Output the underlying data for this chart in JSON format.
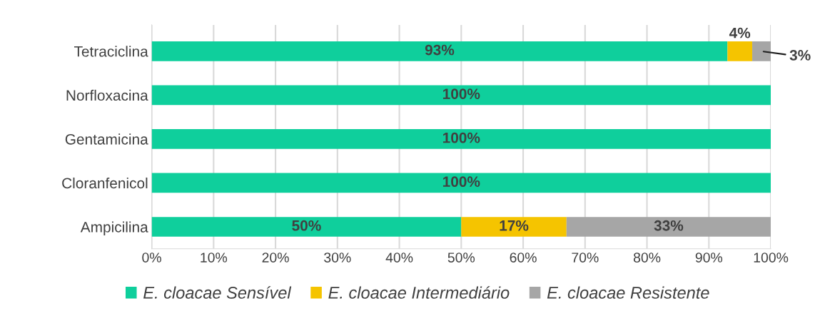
{
  "chart_data": {
    "type": "bar",
    "orientation": "horizontal",
    "stacked": true,
    "categories": [
      "Tetraciclina",
      "Norfloxacina",
      "Gentamicina",
      "Cloranfenicol",
      "Ampicilina"
    ],
    "series": [
      {
        "name": "E. cloacae Sensível",
        "color": "#0fcf9c",
        "values": [
          93,
          100,
          100,
          100,
          50
        ],
        "value_labels": [
          "93%",
          "100%",
          "100%",
          "100%",
          "50%"
        ]
      },
      {
        "name": "E. cloacae Intermediário",
        "color": "#f5c400",
        "values": [
          4,
          0,
          0,
          0,
          17
        ],
        "value_labels": [
          "4%",
          null,
          null,
          null,
          "17%"
        ]
      },
      {
        "name": "E. cloacae Resistente",
        "color": "#a6a6a6",
        "values": [
          3,
          0,
          0,
          0,
          33
        ],
        "value_labels": [
          "3%",
          null,
          null,
          null,
          "33%"
        ]
      }
    ],
    "xlim": [
      0,
      100
    ],
    "xticks": [
      {
        "value": 0,
        "label": "0%"
      },
      {
        "value": 10,
        "label": "10%"
      },
      {
        "value": 20,
        "label": "20%"
      },
      {
        "value": 30,
        "label": "30%"
      },
      {
        "value": 40,
        "label": "40%"
      },
      {
        "value": 50,
        "label": "50%"
      },
      {
        "value": 60,
        "label": "60%"
      },
      {
        "value": 70,
        "label": "70%"
      },
      {
        "value": 80,
        "label": "80%"
      },
      {
        "value": 90,
        "label": "90%"
      },
      {
        "value": 100,
        "label": "100%"
      }
    ],
    "grid": "x",
    "legend": "bottom"
  }
}
